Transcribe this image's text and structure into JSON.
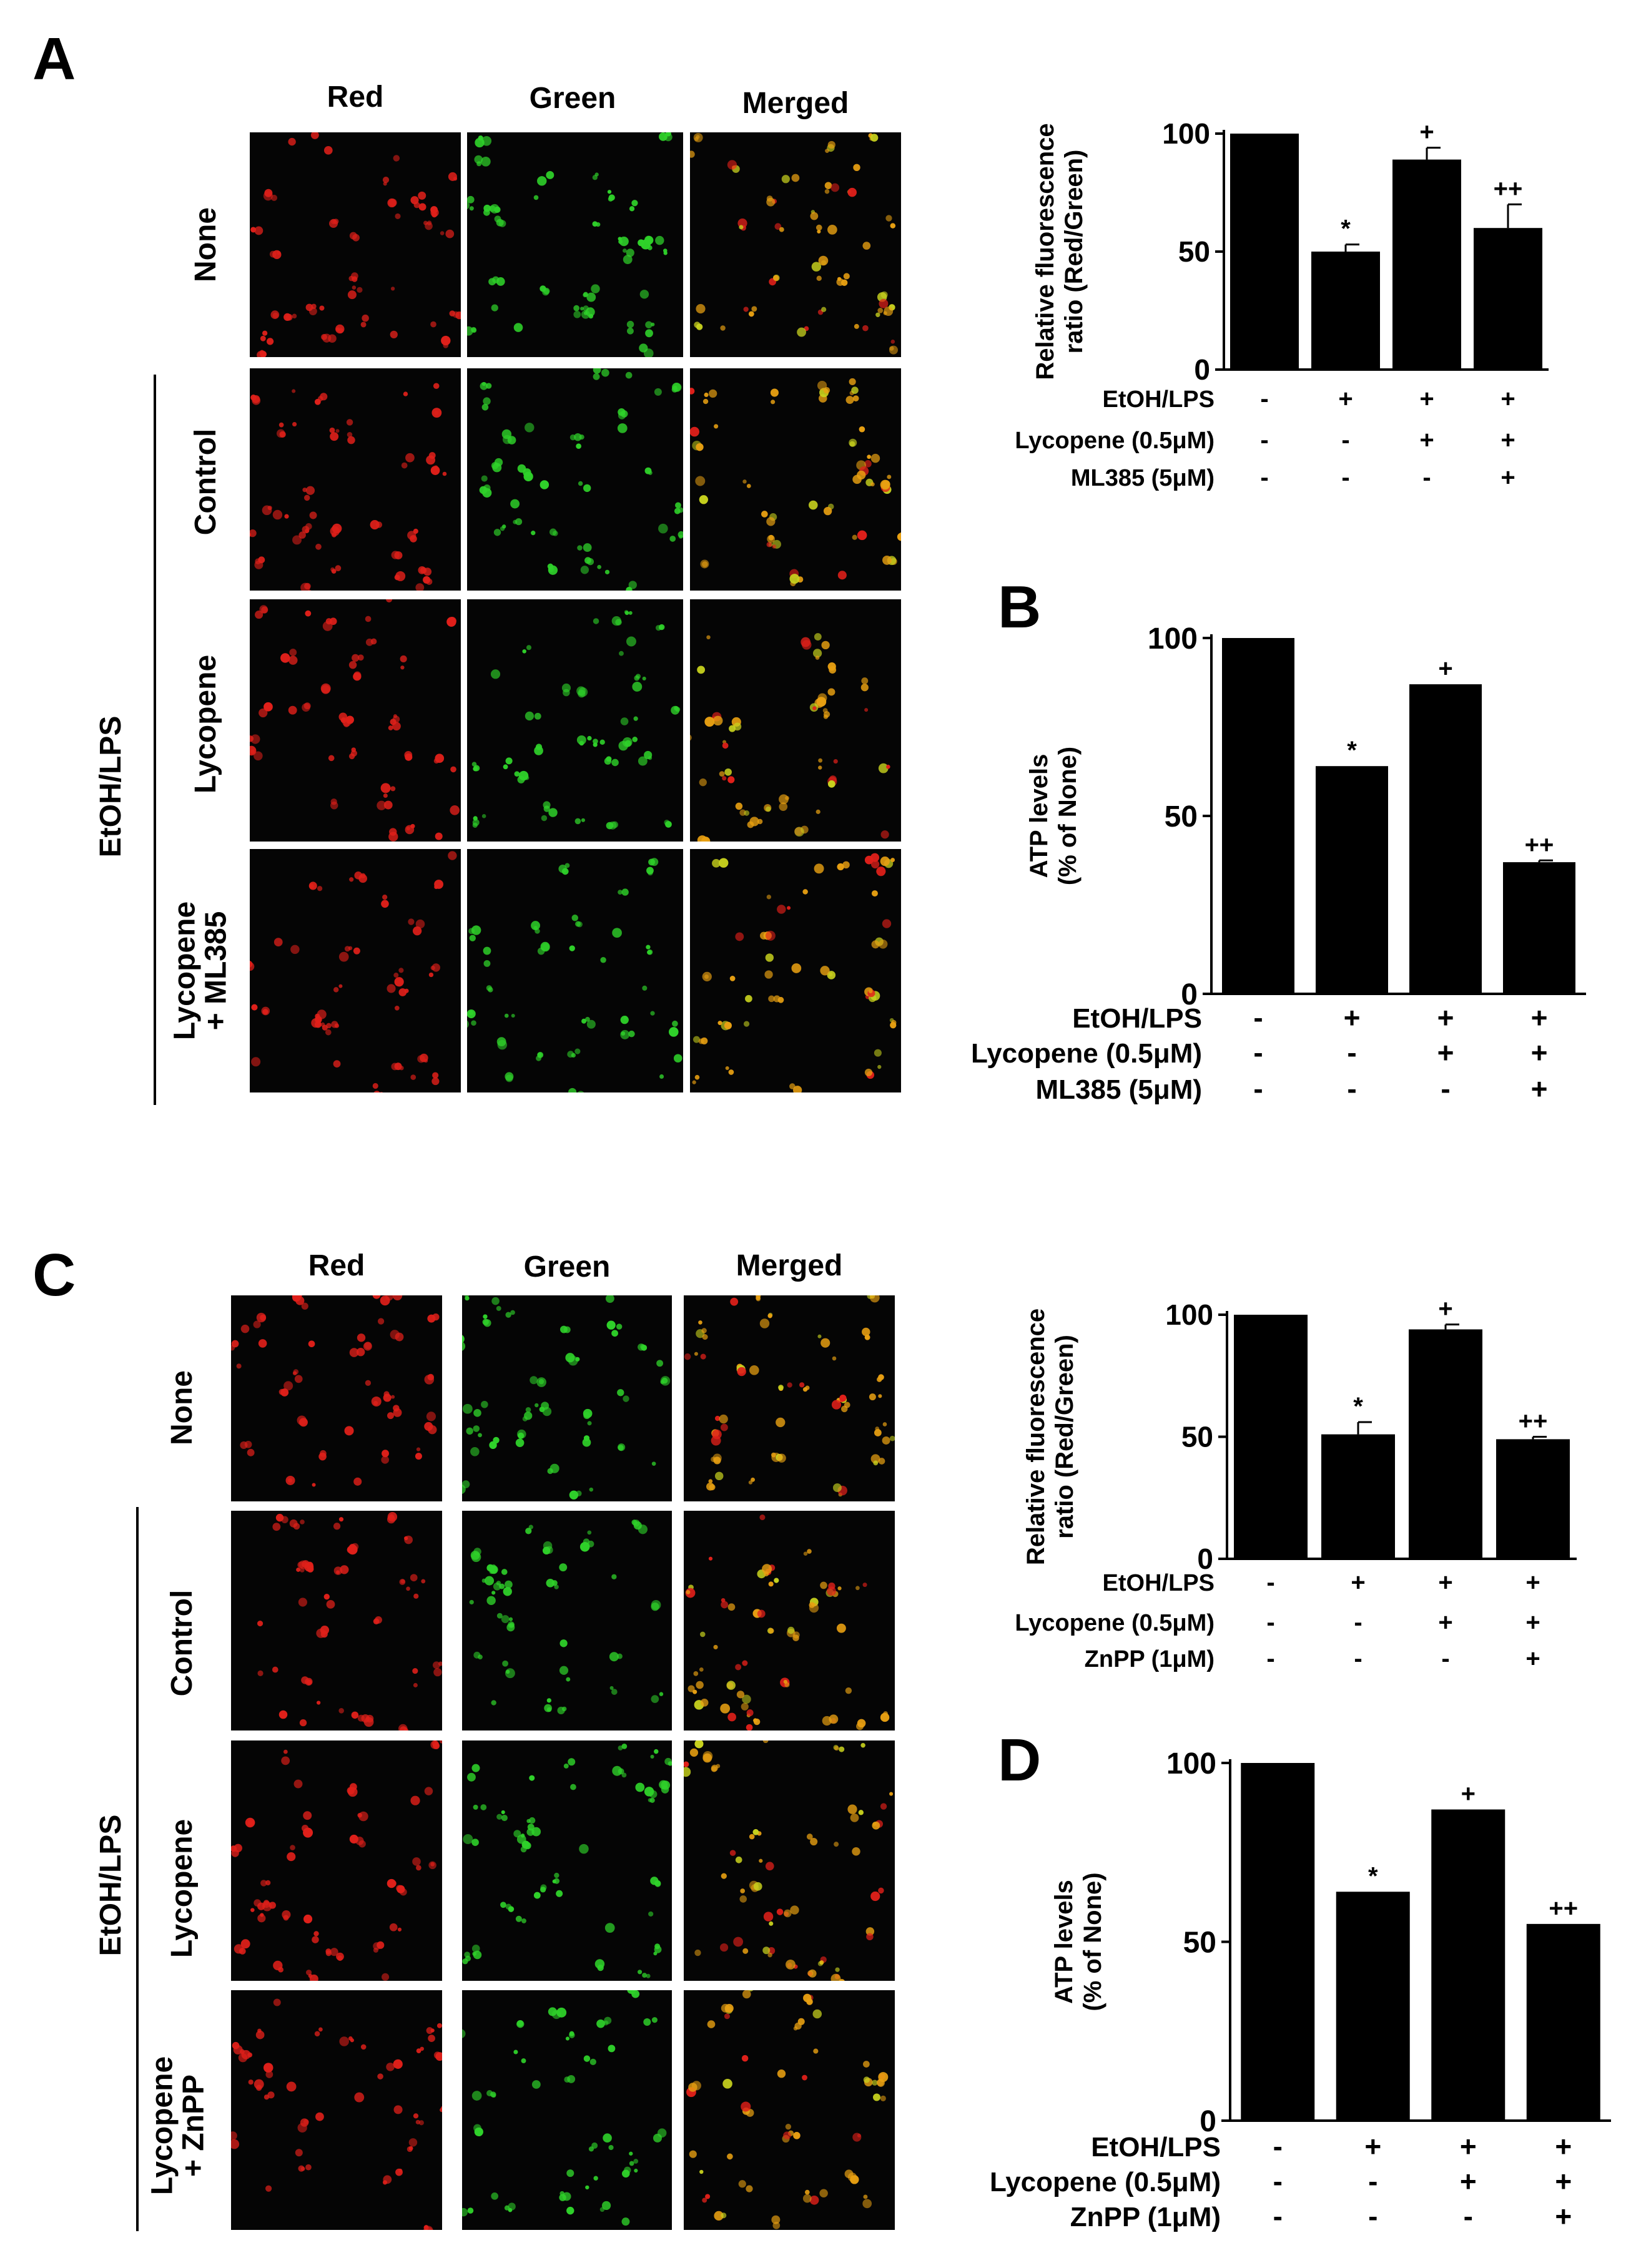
{
  "figure": {
    "panel_letters": [
      "A",
      "B",
      "C",
      "D"
    ],
    "micrograph_groups": [
      {
        "column_headers": [
          "Red",
          "Green",
          "Merged"
        ],
        "row_labels": [
          "None",
          "Control",
          "Lycopene",
          "Lycopene\n+ ML385"
        ],
        "group_label": "EtOH/LPS"
      },
      {
        "column_headers": [
          "Red",
          "Green",
          "Merged"
        ],
        "row_labels": [
          "None",
          "Control",
          "Lycopene",
          "Lycopene\n+ ZnPP"
        ],
        "group_label": "EtOH/LPS"
      }
    ],
    "colors": {
      "red_channel": "#e0201a",
      "green_channel": "#2fd22a",
      "merged_channel": "#e8a012",
      "bar": "#000000"
    }
  },
  "chart_data": [
    {
      "type": "bar",
      "panel": "A",
      "ylabel": "Relative fluorescence\nratio (Red/Green)",
      "ylim": [
        0,
        100
      ],
      "yticks": [
        0,
        50,
        100
      ],
      "values": [
        100,
        50,
        89,
        60
      ],
      "errors": [
        0,
        3,
        5,
        10
      ],
      "significance": [
        "",
        "*",
        "+",
        "++"
      ],
      "conditions": [
        {
          "label": "EtOH/LPS",
          "signs": [
            "-",
            "+",
            "+",
            "+"
          ]
        },
        {
          "label": "Lycopene (0.5μM)",
          "signs": [
            "-",
            "-",
            "+",
            "+"
          ]
        },
        {
          "label": "ML385 (5μM)",
          "signs": [
            "-",
            "-",
            "-",
            "+"
          ]
        }
      ]
    },
    {
      "type": "bar",
      "panel": "B",
      "ylabel": "ATP levels\n(% of None)",
      "ylim": [
        0,
        100
      ],
      "yticks": [
        0,
        50,
        100
      ],
      "values": [
        100,
        64,
        87,
        37
      ],
      "errors": [
        0,
        0,
        0,
        0.5
      ],
      "significance": [
        "",
        "*",
        "+",
        "++"
      ],
      "conditions": [
        {
          "label": "EtOH/LPS",
          "signs": [
            "-",
            "+",
            "+",
            "+"
          ]
        },
        {
          "label": "Lycopene (0.5μM)",
          "signs": [
            "-",
            "-",
            "+",
            "+"
          ]
        },
        {
          "label": "ML385 (5μM)",
          "signs": [
            "-",
            "-",
            "-",
            "+"
          ]
        }
      ]
    },
    {
      "type": "bar",
      "panel": "C",
      "ylabel": "Relative fluorescence\nratio (Red/Green)",
      "ylim": [
        0,
        100
      ],
      "yticks": [
        0,
        50,
        100
      ],
      "values": [
        100,
        51,
        94,
        49
      ],
      "errors": [
        0,
        5,
        2,
        1
      ],
      "significance": [
        "",
        "*",
        "+",
        "++"
      ],
      "conditions": [
        {
          "label": "EtOH/LPS",
          "signs": [
            "-",
            "+",
            "+",
            "+"
          ]
        },
        {
          "label": "Lycopene (0.5μM)",
          "signs": [
            "-",
            "-",
            "+",
            "+"
          ]
        },
        {
          "label": "ZnPP (1μM)",
          "signs": [
            "-",
            "-",
            "-",
            "+"
          ]
        }
      ]
    },
    {
      "type": "bar",
      "panel": "D",
      "ylabel": "ATP levels\n(% of None)",
      "ylim": [
        0,
        100
      ],
      "yticks": [
        0,
        50,
        100
      ],
      "values": [
        100,
        64,
        87,
        55
      ],
      "errors": [
        0,
        0,
        0,
        0
      ],
      "significance": [
        "",
        "*",
        "+",
        "++"
      ],
      "conditions": [
        {
          "label": "EtOH/LPS",
          "signs": [
            "-",
            "+",
            "+",
            "+"
          ]
        },
        {
          "label": "Lycopene (0.5μM)",
          "signs": [
            "-",
            "-",
            "+",
            "+"
          ]
        },
        {
          "label": "ZnPP (1μM)",
          "signs": [
            "-",
            "-",
            "-",
            "+"
          ]
        }
      ]
    }
  ]
}
